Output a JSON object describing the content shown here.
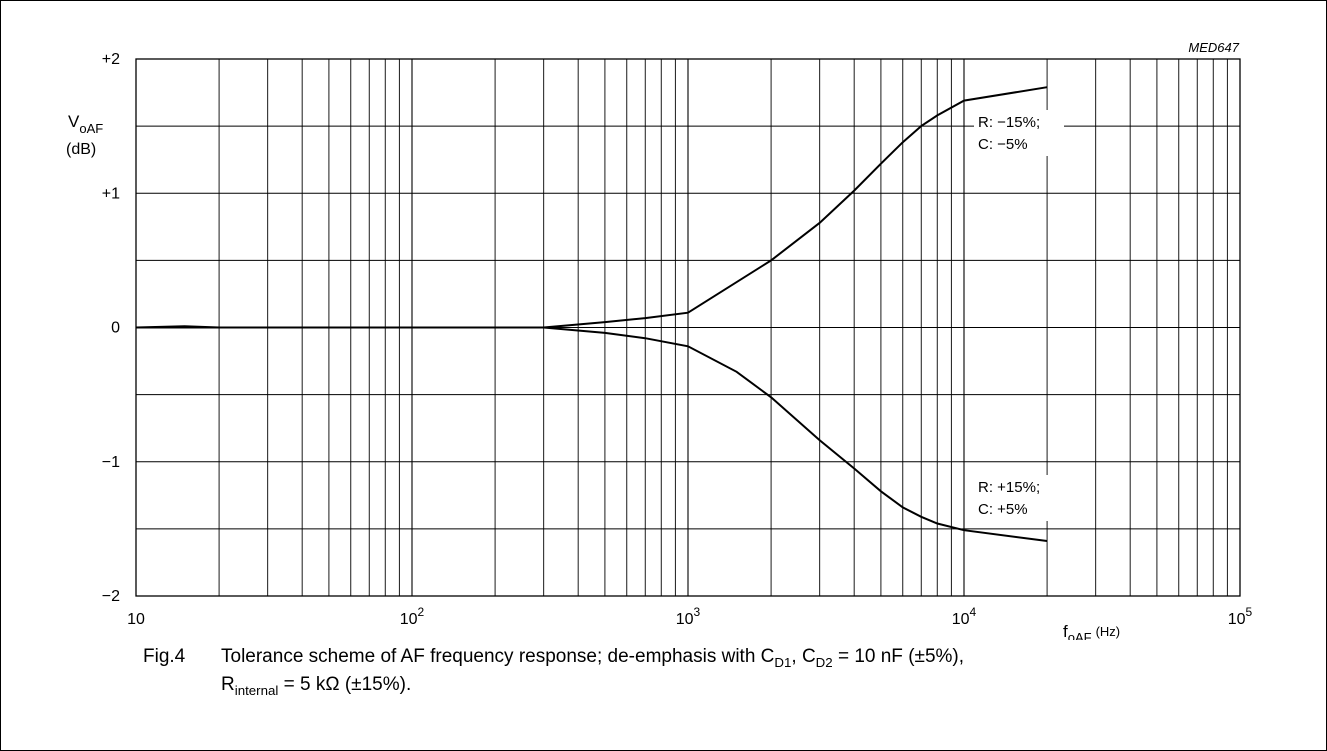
{
  "chart_data": {
    "type": "line",
    "figure_code": "MED647",
    "ylabel": "V",
    "ylabel_sub": "oAF",
    "ylabel_unit": "(dB)",
    "xlabel": "f",
    "xlabel_sub": "oAF",
    "xlabel_unit": "(Hz)",
    "x_scale": "log",
    "xlim": [
      10,
      100000
    ],
    "ylim": [
      -2,
      2
    ],
    "grid": true,
    "x_ticks": [
      {
        "base": "10",
        "exp": ""
      },
      {
        "base": "10",
        "exp": "2"
      },
      {
        "base": "10",
        "exp": "3"
      },
      {
        "base": "10",
        "exp": "4"
      },
      {
        "base": "10",
        "exp": "5"
      }
    ],
    "y_ticks": [
      "+2",
      "+1",
      "0",
      "−1",
      "−2"
    ],
    "series": [
      {
        "name_line1": "R: −15%;",
        "name_line2": "C: −5%",
        "points": [
          [
            10,
            0.0
          ],
          [
            15,
            0.01
          ],
          [
            20,
            0.0
          ],
          [
            100,
            0.0
          ],
          [
            300,
            0.0
          ],
          [
            500,
            0.04
          ],
          [
            700,
            0.07
          ],
          [
            1000,
            0.11
          ],
          [
            2000,
            0.5
          ],
          [
            3000,
            0.78
          ],
          [
            4000,
            1.02
          ],
          [
            5000,
            1.22
          ],
          [
            6000,
            1.38
          ],
          [
            7000,
            1.5
          ],
          [
            8000,
            1.58
          ],
          [
            10000,
            1.69
          ],
          [
            20000,
            1.79
          ]
        ]
      },
      {
        "name_line1": "R: +15%;",
        "name_line2": "C: +5%",
        "points": [
          [
            10,
            0.0
          ],
          [
            100,
            0.0
          ],
          [
            300,
            0.0
          ],
          [
            500,
            -0.04
          ],
          [
            700,
            -0.08
          ],
          [
            1000,
            -0.14
          ],
          [
            1500,
            -0.33
          ],
          [
            2000,
            -0.52
          ],
          [
            3000,
            -0.84
          ],
          [
            4000,
            -1.05
          ],
          [
            5000,
            -1.22
          ],
          [
            6000,
            -1.34
          ],
          [
            7000,
            -1.41
          ],
          [
            8000,
            -1.46
          ],
          [
            10000,
            -1.51
          ],
          [
            20000,
            -1.59
          ]
        ]
      }
    ]
  },
  "caption": {
    "fig_label": "Fig.4",
    "t1": "Tolerance scheme of AF frequency response; de-emphasis with C",
    "s1": "D1",
    "t2": ", C",
    "s2": "D2",
    "t3": " = 10 nF (±5%),",
    "t4": "R",
    "s4": "internal",
    "t5": " = 5 kΩ (±15%)."
  }
}
